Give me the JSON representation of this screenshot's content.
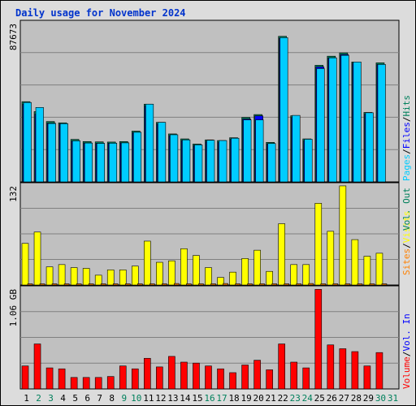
{
  "chart_data": {
    "type": "bar",
    "title": "Daily usage for November 2024",
    "days": [
      "1",
      "2",
      "3",
      "4",
      "5",
      "6",
      "7",
      "8",
      "9",
      "10",
      "11",
      "12",
      "13",
      "14",
      "15",
      "16",
      "17",
      "18",
      "19",
      "20",
      "21",
      "22",
      "23",
      "24",
      "25",
      "26",
      "27",
      "28",
      "29",
      "30",
      "31"
    ],
    "weekend_days": [
      "2",
      "3",
      "9",
      "10",
      "16",
      "17",
      "23",
      "24",
      "30",
      "31"
    ],
    "top_panel": {
      "ymax_label": "87673",
      "ymax": 87673,
      "legend": [
        "Hits",
        "Files",
        "Pages"
      ],
      "series": [
        {
          "name": "Hits",
          "color": "#00805c",
          "values": [
            48500,
            42500,
            36500,
            35700,
            25700,
            24400,
            24200,
            24100,
            24400,
            30700,
            47000,
            36000,
            29000,
            26000,
            22900,
            25400,
            25000,
            26700,
            39000,
            40700,
            23900,
            88000,
            40000,
            26000,
            70500,
            76000,
            78000,
            72500,
            42000,
            72000,
            0
          ]
        },
        {
          "name": "Files",
          "color": "#0000ff",
          "values": [
            47000,
            41000,
            35500,
            35000,
            24700,
            23500,
            23300,
            23400,
            23600,
            29800,
            46000,
            35000,
            28000,
            25000,
            22000,
            24500,
            24000,
            25800,
            38000,
            39900,
            23000,
            87000,
            39000,
            25000,
            69500,
            75000,
            77000,
            71800,
            41000,
            71000,
            0
          ]
        },
        {
          "name": "Pages",
          "color": "#00ccff",
          "values": [
            48000,
            45000,
            35300,
            35200,
            24800,
            23500,
            23300,
            23400,
            23600,
            30000,
            47000,
            36000,
            28500,
            25400,
            22400,
            25200,
            25000,
            26400,
            37500,
            37500,
            23200,
            87200,
            40200,
            25800,
            68500,
            75000,
            76500,
            72500,
            41800,
            71000,
            0
          ]
        }
      ]
    },
    "middle_panel": {
      "ymax_label": "132",
      "ymax": 132,
      "legend": [
        "Visits",
        "Sites",
        "Out",
        "Vol."
      ],
      "series": [
        {
          "name": "Visits",
          "color": "#ffff00",
          "values": [
            55,
            70,
            24,
            27,
            23,
            22,
            13,
            20,
            20,
            25,
            58,
            30,
            32,
            48,
            39,
            23,
            10,
            17,
            35,
            46,
            18,
            81,
            27,
            27,
            108,
            71,
            131,
            60,
            38,
            42,
            0
          ]
        },
        {
          "name": "Sites",
          "color": "#ff8000",
          "values": [
            1,
            1,
            1,
            1,
            1,
            1,
            1,
            1,
            1,
            1,
            1,
            1,
            2,
            1,
            1,
            1,
            2,
            1,
            1,
            1,
            1,
            1,
            1,
            2,
            1,
            1,
            1,
            1,
            1,
            1,
            0
          ]
        }
      ]
    },
    "bottom_panel": {
      "ymax_label": "1.06 GB",
      "ymax_gb": 1.06,
      "legend": [
        "Vol. In",
        "Volume"
      ],
      "series": [
        {
          "name": "Volume",
          "color": "#ff0000",
          "values": [
            0.24,
            0.47,
            0.22,
            0.21,
            0.12,
            0.12,
            0.12,
            0.13,
            0.24,
            0.21,
            0.32,
            0.23,
            0.34,
            0.28,
            0.27,
            0.24,
            0.21,
            0.17,
            0.25,
            0.3,
            0.2,
            0.47,
            0.28,
            0.22,
            1.04,
            0.46,
            0.42,
            0.39,
            0.24,
            0.38,
            0
          ]
        },
        {
          "name": "Vol. In",
          "color": "#0000ff",
          "values": [
            0,
            0,
            0,
            0,
            0,
            0,
            0,
            0,
            0,
            0,
            0,
            0,
            0,
            0,
            0,
            0,
            0,
            0,
            0,
            0,
            0,
            0,
            0,
            0,
            0,
            0,
            0,
            0,
            0,
            0,
            0
          ]
        }
      ]
    },
    "colors": {
      "panel_bg": "#c0c0c0",
      "frame_bg": "#dcdcdc",
      "grid": "#808080",
      "weekday_label": "#000000",
      "weekend_label": "#00805c",
      "title": "#0033cc",
      "legend_sep": "#000000"
    }
  }
}
